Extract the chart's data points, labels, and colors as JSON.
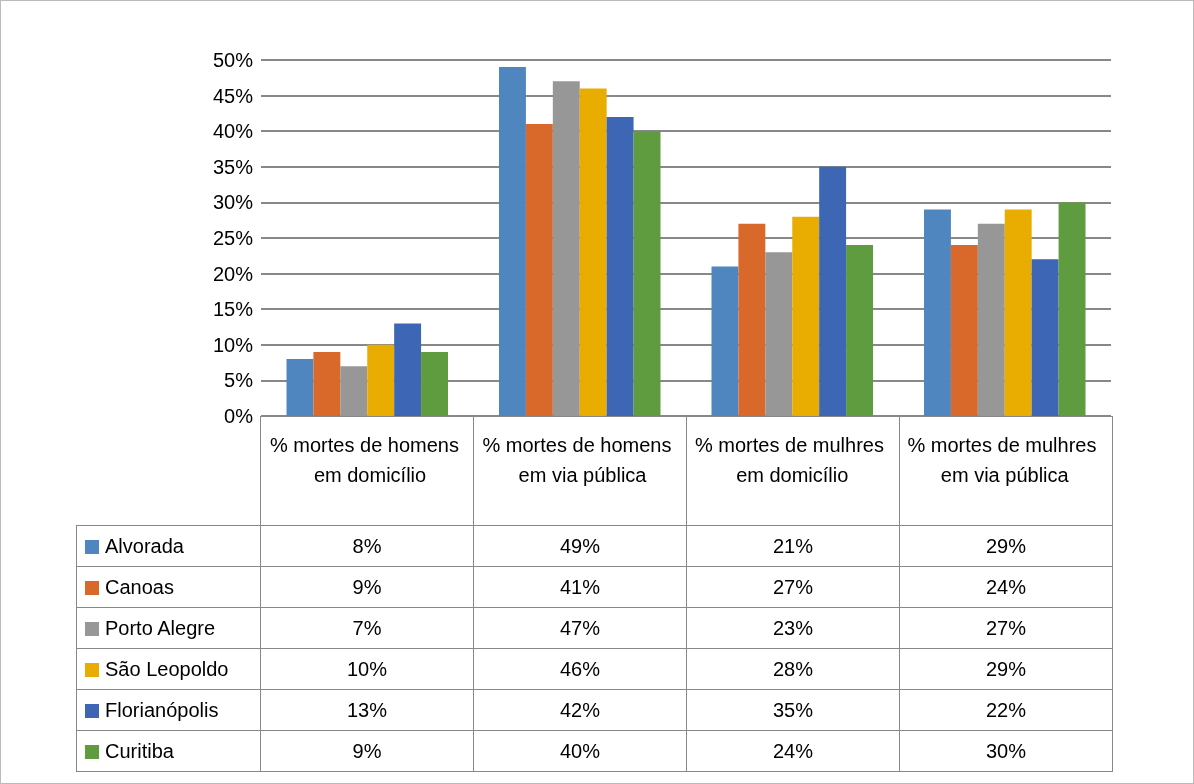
{
  "chart_data": {
    "type": "bar",
    "categories": [
      "% mortes de homens  em domicílio",
      "% mortes de homens  em via pública",
      "% mortes de mulhres em domicílio",
      "% mortes de mulhres em via pública"
    ],
    "series": [
      {
        "name": "Alvorada",
        "color": "#4f86c0",
        "values": [
          8,
          49,
          21,
          29
        ],
        "value_labels": [
          "8%",
          "49%",
          "21%",
          "29%"
        ]
      },
      {
        "name": "Canoas",
        "color": "#d9692b",
        "values": [
          9,
          41,
          27,
          24
        ],
        "value_labels": [
          "9%",
          "41%",
          "27%",
          "24%"
        ]
      },
      {
        "name": "Porto Alegre",
        "color": "#979797",
        "values": [
          7,
          47,
          23,
          27
        ],
        "value_labels": [
          "7%",
          "47%",
          "23%",
          "27%"
        ]
      },
      {
        "name": "São Leopoldo",
        "color": "#e8ad00",
        "values": [
          10,
          46,
          28,
          29
        ],
        "value_labels": [
          "10%",
          "46%",
          "28%",
          "29%"
        ]
      },
      {
        "name": "Florianópolis",
        "color": "#3d66b5",
        "values": [
          13,
          42,
          35,
          22
        ],
        "value_labels": [
          "13%",
          "42%",
          "35%",
          "22%"
        ]
      },
      {
        "name": "Curitiba",
        "color": "#5f9b3f",
        "values": [
          9,
          40,
          24,
          30
        ],
        "value_labels": [
          "9%",
          "40%",
          "24%",
          "30%"
        ]
      }
    ],
    "ylim": [
      0,
      50
    ],
    "yticks": [
      {
        "value": 0,
        "label": "0%"
      },
      {
        "value": 5,
        "label": "5%"
      },
      {
        "value": 10,
        "label": "10%"
      },
      {
        "value": 15,
        "label": "15%"
      },
      {
        "value": 20,
        "label": "20%"
      },
      {
        "value": 25,
        "label": "25%"
      },
      {
        "value": 30,
        "label": "30%"
      },
      {
        "value": 35,
        "label": "35%"
      },
      {
        "value": 40,
        "label": "40%"
      },
      {
        "value": 45,
        "label": "45%"
      },
      {
        "value": 50,
        "label": "50%"
      }
    ],
    "grid": "y",
    "legend": "bottom"
  }
}
